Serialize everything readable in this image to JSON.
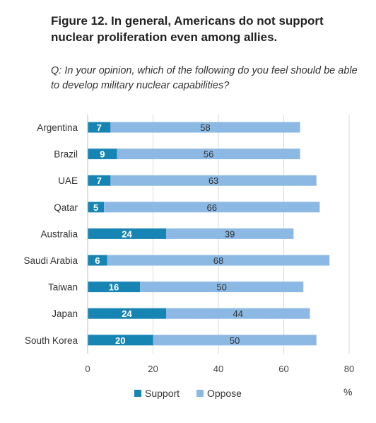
{
  "title": "Figure 12. In general, Americans do not support nuclear proliferation even among allies.",
  "subtitle": "Q: In your opinion, which of the following do you feel should be able to develop military nuclear capabilities?",
  "unit_label": "%",
  "colors": {
    "support": "#1785b4",
    "oppose": "#8cb9e4"
  },
  "chart_data": {
    "type": "bar",
    "orientation": "horizontal",
    "stacked": true,
    "categories": [
      "Argentina",
      "Brazil",
      "UAE",
      "Qatar",
      "Australia",
      "Saudi Arabia",
      "Taiwan",
      "Japan",
      "South Korea"
    ],
    "series": [
      {
        "name": "Support",
        "values": [
          7,
          9,
          7,
          5,
          24,
          6,
          16,
          24,
          20
        ]
      },
      {
        "name": "Oppose",
        "values": [
          58,
          56,
          63,
          66,
          39,
          68,
          50,
          44,
          50
        ]
      }
    ],
    "xlim": [
      0,
      80
    ],
    "xticks": [
      0,
      20,
      40,
      60,
      80
    ],
    "xlabel": "%",
    "grid": true,
    "legend": "bottom"
  }
}
